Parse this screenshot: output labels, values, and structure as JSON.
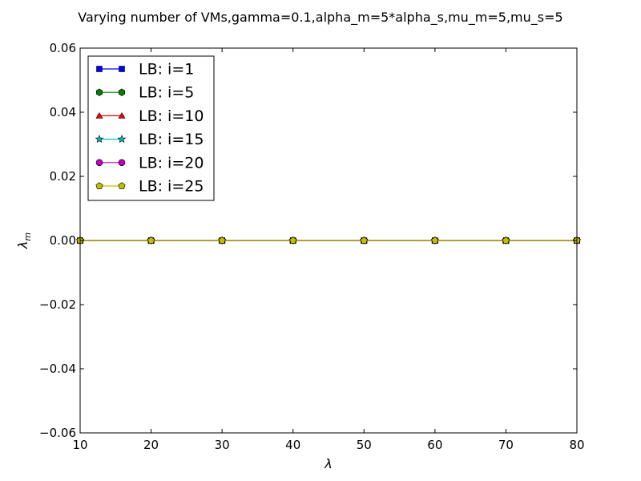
{
  "chart_data": {
    "type": "line",
    "title": "Varying number of VMs,gamma=0.1,alpha_m=5*alpha_s,mu_m=5,mu_s=5",
    "xlabel": "λ",
    "ylabel": "λ",
    "ylabel_subscript": "m",
    "x": [
      10,
      20,
      30,
      40,
      50,
      60,
      70,
      80
    ],
    "xlim": [
      10,
      80
    ],
    "ylim": [
      -0.06,
      0.06
    ],
    "xticks": [
      "10",
      "20",
      "30",
      "40",
      "50",
      "60",
      "70",
      "80"
    ],
    "yticks": [
      "−0.06",
      "−0.04",
      "−0.02",
      "0.00",
      "0.02",
      "0.04",
      "0.06"
    ],
    "ytick_values": [
      -0.06,
      -0.04,
      -0.02,
      0.0,
      0.02,
      0.04,
      0.06
    ],
    "grid": false,
    "legend_position": "top-left",
    "series": [
      {
        "name": "LB: i=1",
        "color": "#0000ff",
        "marker": "square",
        "values": [
          0,
          0,
          0,
          0,
          0,
          0,
          0,
          0
        ]
      },
      {
        "name": "LB: i=5",
        "color": "#008000",
        "marker": "hexagon",
        "values": [
          0,
          0,
          0,
          0,
          0,
          0,
          0,
          0
        ]
      },
      {
        "name": "LB: i=10",
        "color": "#ff0000",
        "marker": "triangle",
        "values": [
          0,
          0,
          0,
          0,
          0,
          0,
          0,
          0
        ]
      },
      {
        "name": "LB: i=15",
        "color": "#00bfbf",
        "marker": "star",
        "values": [
          0,
          0,
          0,
          0,
          0,
          0,
          0,
          0
        ]
      },
      {
        "name": "LB: i=20",
        "color": "#bf00bf",
        "marker": "circle",
        "values": [
          0,
          0,
          0,
          0,
          0,
          0,
          0,
          0
        ]
      },
      {
        "name": "LB: i=25",
        "color": "#bfbf00",
        "marker": "pentagon",
        "values": [
          0,
          0,
          0,
          0,
          0,
          0,
          0,
          0
        ]
      }
    ]
  }
}
